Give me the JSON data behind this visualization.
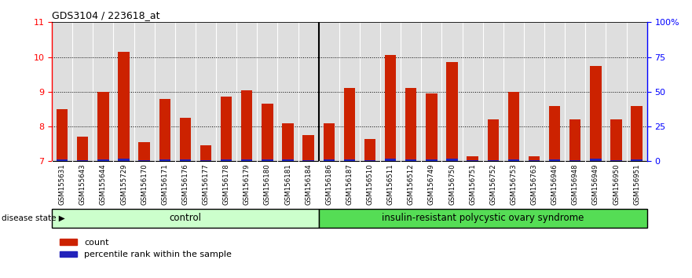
{
  "title": "GDS3104 / 223618_at",
  "samples": [
    "GSM155631",
    "GSM155643",
    "GSM155644",
    "GSM155729",
    "GSM156170",
    "GSM156171",
    "GSM156176",
    "GSM156177",
    "GSM156178",
    "GSM156179",
    "GSM156180",
    "GSM156181",
    "GSM156184",
    "GSM156186",
    "GSM156187",
    "GSM156510",
    "GSM156511",
    "GSM156512",
    "GSM156749",
    "GSM156750",
    "GSM156751",
    "GSM156752",
    "GSM156753",
    "GSM156763",
    "GSM156946",
    "GSM156948",
    "GSM156949",
    "GSM156950",
    "GSM156951"
  ],
  "red_values": [
    8.5,
    7.7,
    9.0,
    10.15,
    7.55,
    8.8,
    8.25,
    7.45,
    8.85,
    9.05,
    8.65,
    8.1,
    7.75,
    8.1,
    9.1,
    7.65,
    10.05,
    9.1,
    8.95,
    9.85,
    7.15,
    8.2,
    9.0,
    7.15,
    8.6,
    8.2,
    9.75,
    8.2,
    8.6
  ],
  "blue_values": [
    0.05,
    0.03,
    0.06,
    0.07,
    0.03,
    0.05,
    0.05,
    0.03,
    0.05,
    0.06,
    0.05,
    0.05,
    0.03,
    0.05,
    0.06,
    0.03,
    0.07,
    0.06,
    0.05,
    0.07,
    0.02,
    0.03,
    0.06,
    0.02,
    0.05,
    0.03,
    0.07,
    0.03,
    0.05
  ],
  "control_count": 13,
  "disease_count": 16,
  "control_label": "control",
  "disease_label": "insulin-resistant polycystic ovary syndrome",
  "disease_state_label": "disease state",
  "ymin": 7,
  "ymax": 11,
  "yticks_left": [
    7,
    8,
    9,
    10,
    11
  ],
  "yticks_right": [
    0,
    25,
    50,
    75,
    100
  ],
  "bar_color": "#CC2200",
  "blue_color": "#2222BB",
  "control_bg": "#CCFFCC",
  "disease_bg": "#55DD55",
  "axis_bg": "#DEDEDE",
  "bar_width": 0.55
}
